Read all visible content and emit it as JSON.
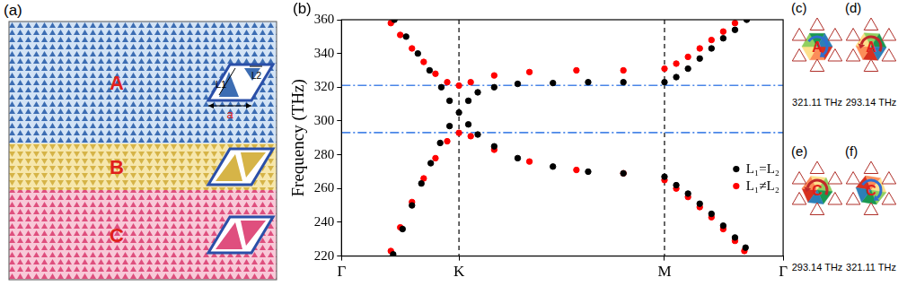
{
  "panel_labels": [
    "(a)",
    "(b)"
  ],
  "schematic": {
    "regions": [
      "A",
      "B",
      "C"
    ],
    "lengths": [
      "L1",
      "L2"
    ],
    "lattice_constant": "a"
  },
  "chart_data": {
    "type": "scatter",
    "y_label": "Frequency (THz)",
    "xlim": [
      0,
      3.76
    ],
    "xticks": [
      {
        "value": 0,
        "label": "Γ"
      },
      {
        "value": 1,
        "label": "K"
      },
      {
        "value": 2.75,
        "label": "M"
      },
      {
        "value": 3.76,
        "label": "Γ"
      }
    ],
    "ylim": [
      220,
      360
    ],
    "yticks": [
      220,
      240,
      260,
      280,
      300,
      320,
      340,
      360
    ],
    "grid": false,
    "legend": "right",
    "vlines": [
      1,
      2.75
    ],
    "hlines": [
      321.11,
      293.14
    ],
    "series": [
      {
        "name": "L₁=L₂",
        "color": "#000000",
        "marker": "circle",
        "x": [
          0.45,
          0.55,
          0.65,
          0.75,
          0.85,
          0.92,
          1.0,
          0.44,
          0.52,
          0.6,
          0.68,
          0.76,
          0.84,
          0.92,
          1.08,
          1.16,
          1.3,
          1.5,
          1.8,
          2.1,
          2.4,
          2.75,
          2.85,
          2.95,
          3.05,
          3.15,
          3.25,
          3.35,
          3.45,
          1.08,
          1.16,
          1.3,
          1.5,
          1.8,
          2.1,
          2.4,
          2.75,
          2.85,
          2.95,
          3.05,
          3.15,
          3.25,
          3.35,
          3.44
        ],
        "values": [
          360,
          350,
          340,
          330,
          320,
          312,
          305,
          221,
          236,
          250,
          263,
          275,
          287,
          297,
          312,
          317,
          320,
          322,
          322.5,
          323,
          323,
          323,
          326,
          331,
          337,
          343,
          349,
          354,
          360,
          298,
          292,
          285,
          278,
          273,
          270,
          269,
          267,
          262,
          257,
          251,
          245,
          238,
          231,
          225
        ]
      },
      {
        "name": "L₁≠L₂",
        "color": "#ff0000",
        "marker": "circle",
        "x": [
          0.42,
          0.5,
          0.6,
          0.7,
          0.8,
          0.9,
          1.0,
          0.42,
          0.5,
          0.6,
          0.7,
          0.8,
          0.9,
          1.0,
          1.1,
          1.3,
          1.6,
          2.0,
          2.4,
          2.75,
          2.85,
          2.95,
          3.05,
          3.15,
          3.25,
          3.35,
          1.1,
          1.3,
          1.6,
          2.0,
          2.4,
          2.75,
          2.85,
          2.95,
          3.05,
          3.15,
          3.25,
          3.35,
          3.43
        ],
        "values": [
          358,
          351,
          343,
          335,
          328,
          323,
          321,
          223,
          237,
          252,
          266,
          278,
          288,
          293,
          323,
          327,
          329,
          330,
          330,
          331,
          334,
          338,
          343,
          348,
          353,
          358,
          291,
          283,
          276,
          271,
          269,
          265,
          260,
          255,
          249,
          243,
          236,
          229,
          223
        ]
      }
    ]
  },
  "modes": [
    {
      "panel": "(c)",
      "region": "A",
      "frequency_label": "321.11 THz"
    },
    {
      "panel": "(d)",
      "region": "A",
      "frequency_label": "293.14 THz"
    },
    {
      "panel": "(e)",
      "region": "C",
      "frequency_label": "293.14 THz"
    },
    {
      "panel": "(f)",
      "region": "C",
      "frequency_label": "321.11 THz"
    }
  ]
}
